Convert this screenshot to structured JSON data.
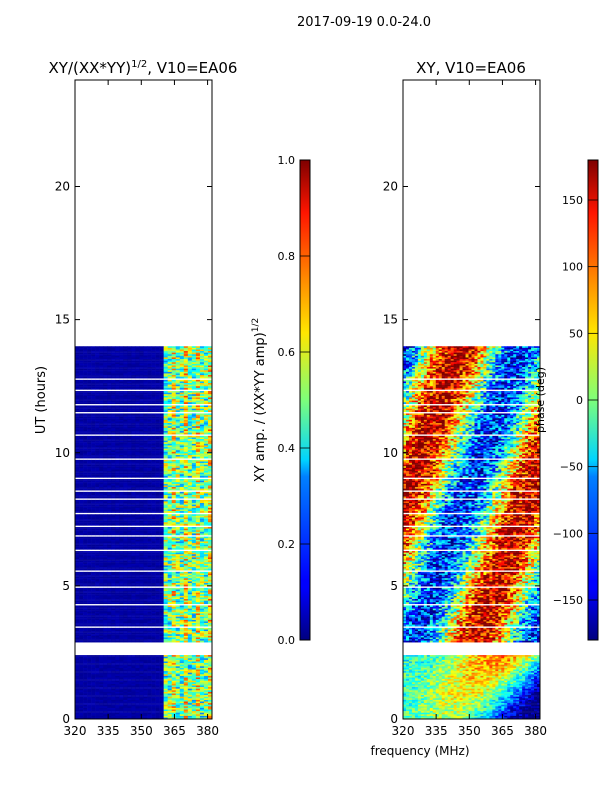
{
  "figure": {
    "suptitle": "2017-09-19 0.0-24.0",
    "xlabel": "frequency (MHz)"
  },
  "chart_data": [
    {
      "type": "heatmap",
      "title": "XY/(XX*YY)",
      "title_exponent": "1/2",
      "title_suffix": ", V10=EA06",
      "ylabel": "UT (hours)",
      "xlim": [
        320,
        382
      ],
      "ylim": [
        0,
        24
      ],
      "xticks": [
        320,
        335,
        350,
        365,
        380
      ],
      "yticks": [
        0,
        5,
        10,
        15,
        20
      ],
      "data_time_ranges_hours": [
        [
          0,
          2.4
        ],
        [
          2.9,
          14.0
        ]
      ],
      "colorbar": {
        "label": "XY amp. / (XX*YY amp)",
        "label_exponent": "1/2",
        "range": [
          0.0,
          1.0
        ],
        "ticks": [
          "0.0",
          "0.2",
          "0.4",
          "0.6",
          "0.8",
          "1.0"
        ]
      }
    },
    {
      "type": "heatmap",
      "title": "XY, V10=EA06",
      "xlim": [
        320,
        382
      ],
      "ylim": [
        0,
        24
      ],
      "xticks": [
        320,
        335,
        350,
        365,
        380
      ],
      "yticks": [
        0,
        5,
        10,
        15,
        20
      ],
      "data_time_ranges_hours": [
        [
          0,
          2.4
        ],
        [
          2.9,
          14.0
        ]
      ],
      "colorbar": {
        "label": "phase (deg)",
        "range": [
          -180,
          180
        ],
        "ticks": [
          "−150",
          "−100",
          "−50",
          "0",
          "50",
          "100",
          "150"
        ]
      }
    }
  ],
  "colors": {
    "jet_low": "#00007f",
    "jet_high": "#7f0000"
  }
}
